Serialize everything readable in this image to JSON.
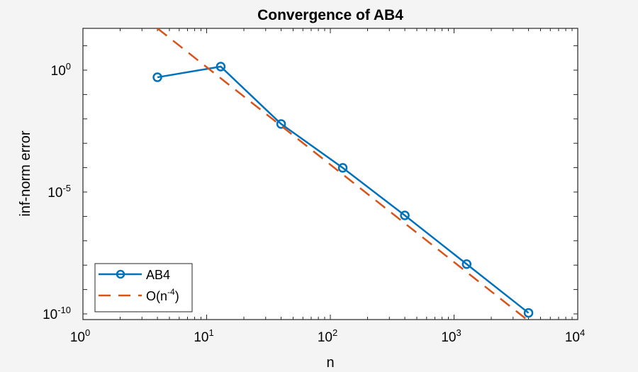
{
  "chart_data": {
    "type": "line",
    "title": "Convergence of AB4",
    "xlabel": "n",
    "ylabel": "inf-norm error",
    "xscale": "log",
    "yscale": "log",
    "xlim": [
      1,
      10000
    ],
    "ylim": [
      3e-11,
      50
    ],
    "x_ticks": [
      {
        "value": 1,
        "base": "10",
        "exp": "0"
      },
      {
        "value": 10,
        "base": "10",
        "exp": "1"
      },
      {
        "value": 100,
        "base": "10",
        "exp": "2"
      },
      {
        "value": 1000,
        "base": "10",
        "exp": "3"
      },
      {
        "value": 10000,
        "base": "10",
        "exp": "4"
      }
    ],
    "y_ticks": [
      {
        "value": 1,
        "base": "10",
        "exp": "0"
      },
      {
        "value": 1e-05,
        "base": "10",
        "exp": "-5"
      },
      {
        "value": 1e-10,
        "base": "10",
        "exp": "-10"
      }
    ],
    "grid": false,
    "legend_position": "southwest",
    "series": [
      {
        "name": "AB4",
        "color": "#0072bd",
        "style": "solid-circle-markers",
        "x": [
          4,
          13,
          40,
          126,
          400,
          1265,
          4000
        ],
        "y": [
          0.51,
          1.4,
          0.0062,
          9.8e-05,
          1.1e-06,
          1.1e-08,
          1.1e-10
        ]
      },
      {
        "name": "O(n^-4)",
        "legend_base": "O(n",
        "legend_exp": "-4",
        "legend_tail": ")",
        "color": "#d95319",
        "style": "dashed",
        "x": [
          4,
          4000
        ],
        "y": [
          52,
          5.2e-11
        ]
      }
    ]
  }
}
